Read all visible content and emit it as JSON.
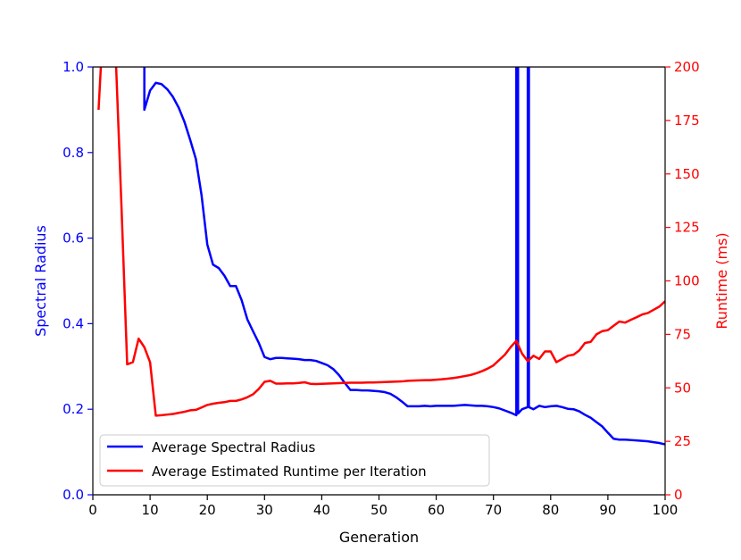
{
  "chart_data": {
    "type": "line",
    "title": "",
    "xlabel": "Generation",
    "ylabel_left": "Spectral Radius",
    "ylabel_right": "Runtime (ms)",
    "xlim": [
      0,
      100
    ],
    "ylim_left": [
      0.0,
      1.0
    ],
    "ylim_right": [
      0,
      200
    ],
    "x_ticks": [
      "0",
      "10",
      "20",
      "30",
      "40",
      "50",
      "60",
      "70",
      "80",
      "90",
      "100"
    ],
    "y_left_ticks": [
      "0.0",
      "0.2",
      "0.4",
      "0.6",
      "0.8",
      "1.0"
    ],
    "y_right_ticks": [
      "0",
      "25",
      "50",
      "75",
      "100",
      "125",
      "150",
      "175",
      "200"
    ],
    "grid": false,
    "legend_position": "lower-left",
    "colors": {
      "left_axis": "#0000ff",
      "right_axis": "#ff0000"
    },
    "series": [
      {
        "name": "Average Spectral Radius",
        "axis": "left",
        "color": "#0000ff",
        "points": [
          [
            9,
            1.05
          ],
          [
            9,
            0.9
          ],
          [
            10,
            0.945
          ],
          [
            11,
            0.963
          ],
          [
            12,
            0.96
          ],
          [
            13,
            0.948
          ],
          [
            14,
            0.93
          ],
          [
            15,
            0.905
          ],
          [
            16,
            0.872
          ],
          [
            17,
            0.83
          ],
          [
            18,
            0.785
          ],
          [
            19,
            0.7
          ],
          [
            20,
            0.585
          ],
          [
            21,
            0.538
          ],
          [
            22,
            0.53
          ],
          [
            23,
            0.512
          ],
          [
            24,
            0.488
          ],
          [
            25,
            0.488
          ],
          [
            26,
            0.455
          ],
          [
            27,
            0.41
          ],
          [
            28,
            0.382
          ],
          [
            29,
            0.355
          ],
          [
            30,
            0.322
          ],
          [
            31,
            0.317
          ],
          [
            32,
            0.32
          ],
          [
            33,
            0.32
          ],
          [
            34,
            0.319
          ],
          [
            35,
            0.318
          ],
          [
            36,
            0.317
          ],
          [
            37,
            0.315
          ],
          [
            38,
            0.315
          ],
          [
            39,
            0.313
          ],
          [
            40,
            0.308
          ],
          [
            41,
            0.303
          ],
          [
            42,
            0.294
          ],
          [
            43,
            0.28
          ],
          [
            44,
            0.262
          ],
          [
            45,
            0.245
          ],
          [
            46,
            0.245
          ],
          [
            47,
            0.244
          ],
          [
            48,
            0.244
          ],
          [
            49,
            0.243
          ],
          [
            50,
            0.242
          ],
          [
            51,
            0.24
          ],
          [
            52,
            0.236
          ],
          [
            53,
            0.228
          ],
          [
            54,
            0.218
          ],
          [
            55,
            0.207
          ],
          [
            56,
            0.207
          ],
          [
            57,
            0.207
          ],
          [
            58,
            0.208
          ],
          [
            59,
            0.207
          ],
          [
            60,
            0.208
          ],
          [
            61,
            0.208
          ],
          [
            62,
            0.208
          ],
          [
            63,
            0.208
          ],
          [
            64,
            0.209
          ],
          [
            65,
            0.21
          ],
          [
            66,
            0.209
          ],
          [
            67,
            0.208
          ],
          [
            68,
            0.208
          ],
          [
            69,
            0.207
          ],
          [
            70,
            0.205
          ],
          [
            71,
            0.202
          ],
          [
            72,
            0.197
          ],
          [
            73,
            0.192
          ],
          [
            74,
            0.186
          ],
          [
            74,
            1.05
          ],
          [
            74.3,
            1.05
          ],
          [
            74.3,
            0.19
          ],
          [
            75,
            0.2
          ],
          [
            76,
            0.205
          ],
          [
            76,
            1.05
          ],
          [
            76.2,
            1.05
          ],
          [
            76.2,
            0.205
          ],
          [
            77,
            0.2
          ],
          [
            78,
            0.208
          ],
          [
            79,
            0.205
          ],
          [
            80,
            0.207
          ],
          [
            81,
            0.208
          ],
          [
            82,
            0.205
          ],
          [
            83,
            0.201
          ],
          [
            84,
            0.2
          ],
          [
            85,
            0.195
          ],
          [
            86,
            0.187
          ],
          [
            87,
            0.18
          ],
          [
            88,
            0.17
          ],
          [
            89,
            0.16
          ],
          [
            90,
            0.145
          ],
          [
            91,
            0.131
          ],
          [
            92,
            0.129
          ],
          [
            93,
            0.129
          ],
          [
            94,
            0.128
          ],
          [
            95,
            0.127
          ],
          [
            96,
            0.126
          ],
          [
            97,
            0.125
          ],
          [
            98,
            0.123
          ],
          [
            99,
            0.121
          ],
          [
            100,
            0.118
          ]
        ]
      },
      {
        "name": "Average Estimated Runtime per Iteration",
        "axis": "right",
        "color": "#ff0000",
        "points": [
          [
            1,
            180
          ],
          [
            1.5,
            205
          ],
          [
            4,
            205
          ],
          [
            5,
            135
          ],
          [
            6,
            61
          ],
          [
            7,
            62
          ],
          [
            8,
            73
          ],
          [
            9,
            69
          ],
          [
            10,
            62
          ],
          [
            11,
            37
          ],
          [
            12,
            37.2
          ],
          [
            13,
            37.5
          ],
          [
            14,
            37.8
          ],
          [
            15,
            38.3
          ],
          [
            16,
            38.8
          ],
          [
            17,
            39.5
          ],
          [
            18,
            39.7
          ],
          [
            19,
            40.8
          ],
          [
            20,
            42
          ],
          [
            21,
            42.6
          ],
          [
            22,
            43
          ],
          [
            23,
            43.3
          ],
          [
            24,
            43.9
          ],
          [
            25,
            43.9
          ],
          [
            26,
            44.6
          ],
          [
            27,
            45.6
          ],
          [
            28,
            47
          ],
          [
            29,
            49.5
          ],
          [
            30,
            52.8
          ],
          [
            31,
            53.3
          ],
          [
            32,
            52
          ],
          [
            33,
            52
          ],
          [
            34,
            52.1
          ],
          [
            35,
            52.1
          ],
          [
            36,
            52.3
          ],
          [
            37,
            52.6
          ],
          [
            38,
            51.9
          ],
          [
            39,
            51.8
          ],
          [
            40,
            51.9
          ],
          [
            41,
            52
          ],
          [
            42,
            52.1
          ],
          [
            43,
            52.2
          ],
          [
            44,
            52.3
          ],
          [
            45,
            52.4
          ],
          [
            46,
            52.4
          ],
          [
            47,
            52.4
          ],
          [
            48,
            52.5
          ],
          [
            49,
            52.5
          ],
          [
            50,
            52.6
          ],
          [
            51,
            52.7
          ],
          [
            52,
            52.8
          ],
          [
            53,
            52.9
          ],
          [
            54,
            53
          ],
          [
            55,
            53.3
          ],
          [
            56,
            53.4
          ],
          [
            57,
            53.5
          ],
          [
            58,
            53.6
          ],
          [
            59,
            53.6
          ],
          [
            60,
            53.8
          ],
          [
            61,
            54
          ],
          [
            62,
            54.3
          ],
          [
            63,
            54.6
          ],
          [
            64,
            55
          ],
          [
            65,
            55.5
          ],
          [
            66,
            56
          ],
          [
            67,
            56.8
          ],
          [
            68,
            57.8
          ],
          [
            69,
            59
          ],
          [
            70,
            60.5
          ],
          [
            71,
            63
          ],
          [
            72,
            65.5
          ],
          [
            73,
            69
          ],
          [
            74,
            72
          ],
          [
            75,
            66
          ],
          [
            76,
            62.5
          ],
          [
            77,
            65
          ],
          [
            78,
            63.5
          ],
          [
            79,
            67
          ],
          [
            80,
            67
          ],
          [
            81,
            62
          ],
          [
            82,
            63.5
          ],
          [
            83,
            65
          ],
          [
            84,
            65.5
          ],
          [
            85,
            67.5
          ],
          [
            86,
            71
          ],
          [
            87,
            71.5
          ],
          [
            88,
            75
          ],
          [
            89,
            76.5
          ],
          [
            90,
            77
          ],
          [
            91,
            79
          ],
          [
            92,
            81
          ],
          [
            93,
            80.5
          ],
          [
            94,
            81.8
          ],
          [
            95,
            83
          ],
          [
            96,
            84.3
          ],
          [
            97,
            85
          ],
          [
            98,
            86.5
          ],
          [
            99,
            88
          ],
          [
            100,
            90.5
          ]
        ]
      }
    ]
  }
}
